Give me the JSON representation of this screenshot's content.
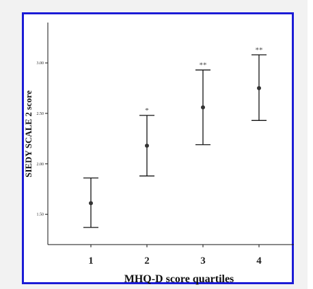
{
  "chart_data": {
    "type": "scatter",
    "title": "",
    "xlabel": "MHQ-D score quartiles",
    "ylabel": "SIEDY SCALE 2 score",
    "categories": [
      "1",
      "2",
      "3",
      "4"
    ],
    "ylim": [
      1.2,
      3.4
    ],
    "yticks": [
      "1.50",
      "2.00",
      "2.50",
      "3.00"
    ],
    "series": [
      {
        "values": [
          1.61,
          2.18,
          2.56,
          2.75
        ],
        "lower": [
          1.37,
          1.88,
          2.19,
          2.43
        ],
        "upper": [
          1.86,
          2.48,
          2.93,
          3.08
        ],
        "significance": [
          "",
          "*",
          "**",
          "**"
        ]
      }
    ],
    "grid": false,
    "legend": "none"
  },
  "colors": {
    "frame_border": "#1b1bd6",
    "marker": "#333333",
    "axis": "#111111"
  }
}
